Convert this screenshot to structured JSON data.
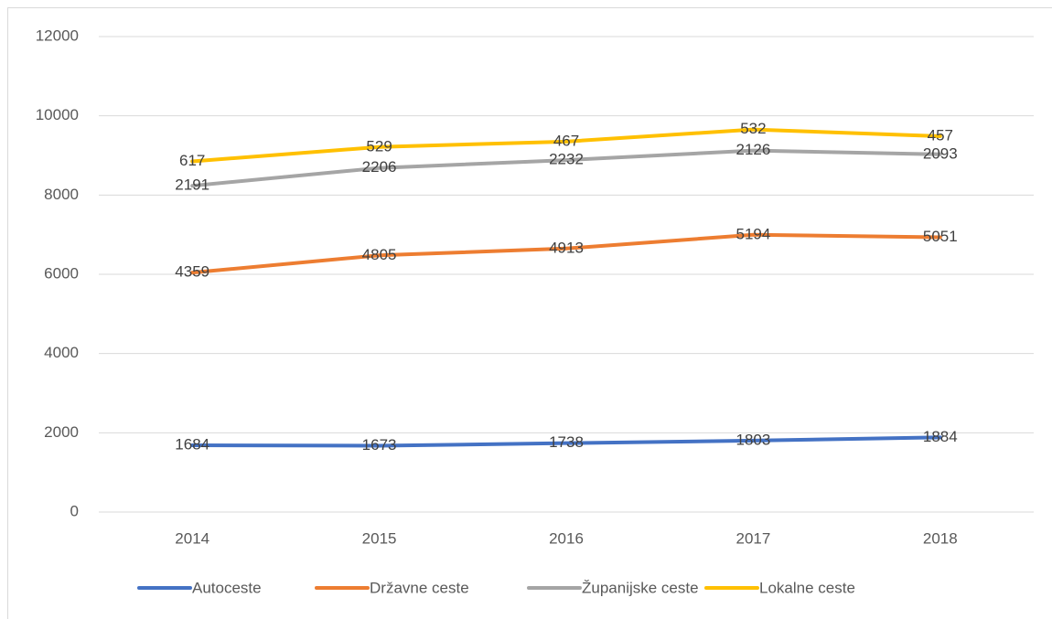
{
  "chart_data": {
    "type": "line",
    "stacked": true,
    "categories": [
      "2014",
      "2015",
      "2016",
      "2017",
      "2018"
    ],
    "series": [
      {
        "name": "Autoceste",
        "color": "#4472c4",
        "values": [
          1684,
          1673,
          1738,
          1803,
          1884
        ]
      },
      {
        "name": "Državne ceste",
        "color": "#ed7d31",
        "values": [
          4359,
          4805,
          4913,
          5194,
          5051
        ]
      },
      {
        "name": "Županijske ceste",
        "color": "#a5a5a5",
        "values": [
          2191,
          2206,
          2232,
          2126,
          2093
        ]
      },
      {
        "name": "Lokalne ceste",
        "color": "#ffc000",
        "values": [
          617,
          529,
          467,
          532,
          457
        ]
      }
    ],
    "ylim": [
      0,
      12000
    ],
    "yticks": [
      0,
      2000,
      4000,
      6000,
      8000,
      10000,
      12000
    ],
    "grid": true,
    "legend": "bottom"
  }
}
